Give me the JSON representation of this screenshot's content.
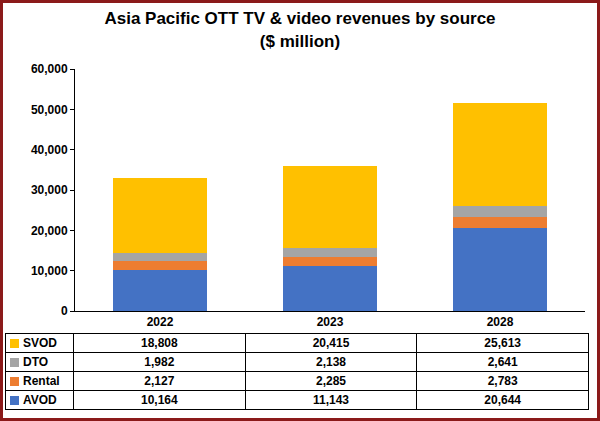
{
  "chart_data": {
    "type": "bar",
    "title": "Asia Pacific OTT TV & video revenues by source",
    "subtitle": "($ million)",
    "categories": [
      "2022",
      "2023",
      "2028"
    ],
    "stacked": true,
    "grid": false,
    "ylim": [
      0,
      60000
    ],
    "yticks": [
      0,
      {
        "value": 10000,
        "label": "10,000"
      },
      {
        "value": 20000,
        "label": "20,000"
      },
      {
        "value": 30000,
        "label": "30,000"
      },
      {
        "value": 40000,
        "label": "40,000"
      },
      {
        "value": 50000,
        "label": "50,000"
      },
      {
        "value": 60000,
        "label": "60,000"
      }
    ],
    "series": [
      {
        "name": "AVOD",
        "color": "#4472c4",
        "values": [
          10164,
          11143,
          20644
        ],
        "value_labels": [
          "10,164",
          "11,143",
          "20,644"
        ]
      },
      {
        "name": "Rental",
        "color": "#ed7d31",
        "values": [
          2127,
          2285,
          2783
        ],
        "value_labels": [
          "2,127",
          "2,285",
          "2,783"
        ]
      },
      {
        "name": "DTO",
        "color": "#a5a5a5",
        "values": [
          1982,
          2138,
          2641
        ],
        "value_labels": [
          "1,982",
          "2,138",
          "2,641"
        ]
      },
      {
        "name": "SVOD",
        "color": "#ffc000",
        "values": [
          18808,
          20415,
          25613
        ],
        "value_labels": [
          "18,808",
          "20,415",
          "25,613"
        ]
      }
    ]
  }
}
